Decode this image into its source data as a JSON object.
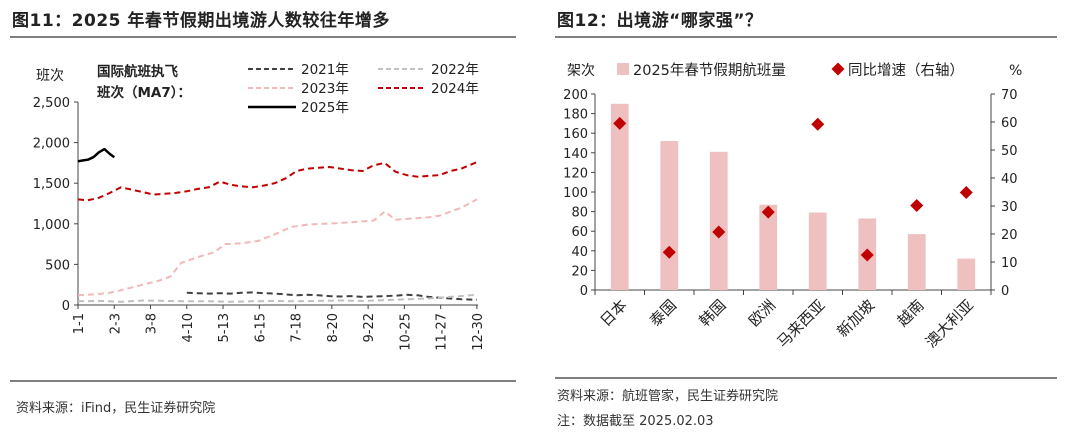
{
  "left_panel": {
    "title": "图11：2025 年春节假期出境游人数较往年增多",
    "source": "资料来源：iFind，民生证券研究院"
  },
  "right_panel": {
    "title": "图12：出境游“哪家强”？",
    "source": "资料来源：航班管家，民生证券研究院",
    "note": "注：数据截至 2025.02.03"
  },
  "colors": {
    "y2021": "#404040",
    "y2022": "#bfbfbf",
    "y2023": "#f2b8b8",
    "y2024": "#c00000",
    "y2025": "#000000",
    "bar": "#efc0c0",
    "marker": "#c00000"
  },
  "chart_data": [
    {
      "type": "line",
      "ylabel": "班次",
      "annotation": "国际航班执飞班次（MA7）：",
      "ylim": [
        0,
        2500
      ],
      "yticks": [
        "0",
        "500",
        "1,000",
        "1,500",
        "2,000",
        "2,500"
      ],
      "xtick_labels": [
        "1-1",
        "2-3",
        "3-8",
        "4-10",
        "5-13",
        "6-15",
        "7-18",
        "8-20",
        "9-22",
        "10-25",
        "11-27",
        "12-30"
      ],
      "x_days": [
        1,
        34,
        67,
        100,
        133,
        166,
        199,
        232,
        265,
        298,
        331,
        364
      ],
      "legend_position": "top-right",
      "series": [
        {
          "name": "2021年",
          "style": "dashed",
          "x": [
            100,
            110,
            120,
            130,
            140,
            150,
            160,
            170,
            180,
            190,
            200,
            210,
            220,
            230,
            240,
            250,
            260,
            270,
            280,
            290,
            300,
            310,
            320,
            330,
            340,
            350,
            364
          ],
          "y": [
            150,
            145,
            140,
            145,
            140,
            150,
            155,
            145,
            140,
            130,
            120,
            125,
            120,
            110,
            105,
            110,
            100,
            105,
            110,
            115,
            125,
            120,
            100,
            90,
            80,
            70,
            65
          ]
        },
        {
          "name": "2022年",
          "style": "dashed",
          "x": [
            1,
            20,
            40,
            60,
            80,
            100,
            120,
            140,
            160,
            180,
            200,
            220,
            240,
            260,
            280,
            300,
            320,
            340,
            364
          ],
          "y": [
            45,
            50,
            40,
            55,
            50,
            45,
            45,
            40,
            45,
            50,
            45,
            50,
            55,
            50,
            60,
            70,
            80,
            100,
            125
          ]
        },
        {
          "name": "2023年",
          "style": "dashed",
          "x": [
            1,
            15,
            30,
            45,
            60,
            75,
            85,
            95,
            110,
            125,
            135,
            150,
            165,
            180,
            195,
            210,
            225,
            240,
            250,
            260,
            270,
            280,
            290,
            300,
            310,
            320,
            330,
            340,
            350,
            364
          ],
          "y": [
            120,
            130,
            150,
            200,
            250,
            300,
            350,
            520,
            590,
            650,
            750,
            760,
            790,
            870,
            960,
            990,
            1000,
            1010,
            1020,
            1030,
            1040,
            1150,
            1050,
            1060,
            1070,
            1080,
            1100,
            1150,
            1200,
            1300
          ]
        },
        {
          "name": "2024年",
          "style": "dashed",
          "x": [
            1,
            10,
            20,
            30,
            40,
            50,
            60,
            70,
            80,
            90,
            100,
            110,
            120,
            130,
            140,
            150,
            160,
            170,
            180,
            190,
            200,
            210,
            220,
            230,
            240,
            250,
            260,
            270,
            280,
            290,
            300,
            310,
            320,
            330,
            340,
            350,
            364
          ],
          "y": [
            1300,
            1290,
            1320,
            1380,
            1450,
            1420,
            1390,
            1360,
            1370,
            1380,
            1400,
            1430,
            1450,
            1520,
            1480,
            1460,
            1450,
            1470,
            1500,
            1560,
            1650,
            1680,
            1690,
            1700,
            1680,
            1660,
            1650,
            1720,
            1750,
            1640,
            1600,
            1580,
            1590,
            1600,
            1650,
            1680,
            1760
          ]
        },
        {
          "name": "2025年",
          "style": "solid",
          "x": [
            1,
            5,
            10,
            15,
            20,
            25,
            30,
            34
          ],
          "y": [
            1770,
            1780,
            1790,
            1820,
            1880,
            1920,
            1860,
            1820
          ]
        }
      ]
    },
    {
      "type": "bar",
      "ylabel": "架次",
      "y2label": "%",
      "categories": [
        "日本",
        "泰国",
        "韩国",
        "欧洲",
        "马来西亚",
        "新加坡",
        "越南",
        "澳大利亚"
      ],
      "ylim": [
        0,
        200
      ],
      "y2lim": [
        0,
        70
      ],
      "yticks": [
        0,
        20,
        40,
        60,
        80,
        100,
        120,
        140,
        160,
        180,
        200
      ],
      "y2ticks": [
        0,
        10,
        20,
        30,
        40,
        50,
        60,
        70
      ],
      "legend_position": "top",
      "series": [
        {
          "name": "2025年春节假期航班量",
          "type": "bar",
          "axis": "left",
          "values": [
            190,
            152,
            141,
            87,
            79,
            73,
            57,
            32
          ]
        },
        {
          "name": "同比增速（右轴）",
          "type": "scatter",
          "axis": "right",
          "values": [
            59.5,
            13.5,
            20.7,
            27.8,
            59.2,
            12.5,
            30.2,
            34.8
          ]
        }
      ]
    }
  ]
}
